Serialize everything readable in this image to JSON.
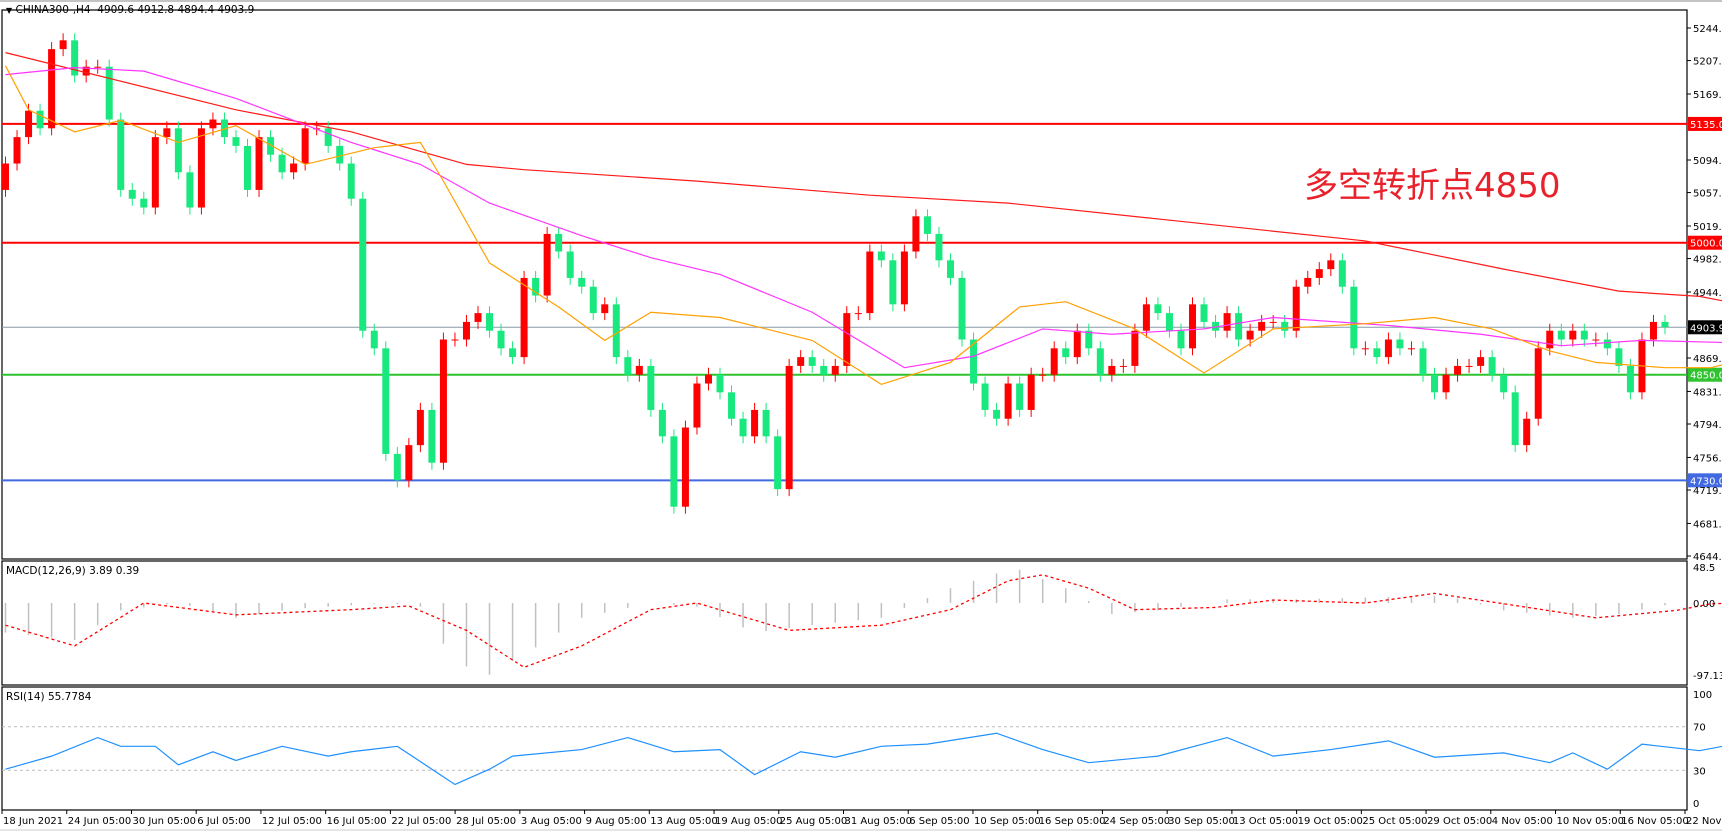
{
  "header": {
    "symbol": "CHINA300-,H4",
    "ohlc": "4909.6 4912.8 4894.4 4903.9"
  },
  "annotation": "多空转折点4850",
  "colors": {
    "bull": "#ff0000",
    "bear": "#19e87f",
    "ma_slow": "#ff1a1a",
    "ma_mid": "#ff33ff",
    "ma_fast": "#ffa000",
    "macd_hist": "#c0c0c0",
    "macd_signal": "#ff0000",
    "rsi": "#1e90ff"
  },
  "chart_data": [
    {
      "type": "candlestick",
      "title": "CHINA300-,H4",
      "ylim": [
        4644,
        5262
      ],
      "y_ticks": [
        "5244.0",
        "5207.0",
        "5169.0",
        "5094.0",
        "5057.0",
        "5019.0",
        "4982.0",
        "4944.0",
        "4869.0",
        "4831.0",
        "4794.0",
        "4756.0",
        "4719.0",
        "4681.0",
        "4644.0"
      ],
      "x_ticks": [
        "18 Jun 2021",
        "24 Jun 05:00",
        "30 Jun 05:00",
        "6 Jul 05:00",
        "12 Jul 05:00",
        "16 Jul 05:00",
        "22 Jul 05:00",
        "28 Jul 05:00",
        "3 Aug 05:00",
        "9 Aug 05:00",
        "13 Aug 05:00",
        "19 Aug 05:00",
        "25 Aug 05:00",
        "31 Aug 05:00",
        "6 Sep 05:00",
        "10 Sep 05:00",
        "16 Sep 05:00",
        "24 Sep 05:00",
        "30 Sep 05:00",
        "13 Oct 05:00",
        "19 Oct 05:00",
        "25 Oct 05:00",
        "29 Oct 05:00",
        "4 Nov 05:00",
        "10 Nov 05:00",
        "16 Nov 05:00",
        "22 Nov 05:00"
      ],
      "first_open": 5060,
      "closes": [
        5090,
        5120,
        5150,
        5130,
        5220,
        5230,
        5190,
        5200,
        5200,
        5140,
        5060,
        5050,
        5040,
        5120,
        5130,
        5080,
        5040,
        5130,
        5140,
        5120,
        5110,
        5060,
        5120,
        5100,
        5080,
        5090,
        5130,
        5130,
        5110,
        5090,
        5050,
        4900,
        4880,
        4760,
        4730,
        4770,
        4810,
        4750,
        4890,
        4890,
        4910,
        4920,
        4900,
        4880,
        4870,
        4960,
        4940,
        5010,
        4990,
        4960,
        4950,
        4920,
        4930,
        4870,
        4850,
        4860,
        4810,
        4780,
        4700,
        4790,
        4840,
        4850,
        4830,
        4800,
        4780,
        4810,
        4780,
        4720,
        4860,
        4870,
        4860,
        4850,
        4860,
        4920,
        4920,
        4990,
        4980,
        4930,
        4990,
        5030,
        5010,
        4980,
        4960,
        4890,
        4840,
        4810,
        4800,
        4840,
        4810,
        4850,
        4850,
        4880,
        4870,
        4900,
        4880,
        4850,
        4860,
        4860,
        4900,
        4930,
        4920,
        4900,
        4880,
        4930,
        4910,
        4900,
        4920,
        4890,
        4900,
        4910,
        4910,
        4900,
        4950,
        4960,
        4970,
        4980,
        4950,
        4880,
        4880,
        4870,
        4890,
        4880,
        4880,
        4850,
        4830,
        4850,
        4860,
        4860,
        4870,
        4850,
        4830,
        4770,
        4800,
        4880,
        4900,
        4890,
        4900,
        4890,
        4890,
        4880,
        4860,
        4830,
        4890,
        4910,
        4904
      ],
      "moving_averages": [
        {
          "role": "slow",
          "points": [
            [
              0,
              5216
            ],
            [
              20,
              5151
            ],
            [
              30,
              5126
            ],
            [
              40,
              5089
            ],
            [
              45,
              5083
            ],
            [
              60,
              5070
            ],
            [
              75,
              5054
            ],
            [
              87,
              5045
            ],
            [
              100,
              5027
            ],
            [
              118,
              5002
            ],
            [
              130,
              4970
            ],
            [
              140,
              4945
            ],
            [
              147,
              4939
            ],
            [
              151,
              4929
            ]
          ]
        },
        {
          "role": "mid",
          "points": [
            [
              0,
              5191
            ],
            [
              6,
              5199
            ],
            [
              12,
              5195
            ],
            [
              20,
              5164
            ],
            [
              30,
              5114
            ],
            [
              36,
              5089
            ],
            [
              42,
              5045
            ],
            [
              50,
              5008
            ],
            [
              56,
              4983
            ],
            [
              62,
              4964
            ],
            [
              70,
              4921
            ],
            [
              78,
              4858
            ],
            [
              84,
              4871
            ],
            [
              90,
              4902
            ],
            [
              96,
              4896
            ],
            [
              104,
              4902
            ],
            [
              110,
              4915
            ],
            [
              120,
              4906
            ],
            [
              128,
              4896
            ],
            [
              135,
              4883
            ],
            [
              142,
              4889
            ],
            [
              151,
              4886
            ]
          ]
        },
        {
          "role": "fast",
          "points": [
            [
              0,
              5201
            ],
            [
              2,
              5151
            ],
            [
              6,
              5126
            ],
            [
              10,
              5139
            ],
            [
              15,
              5114
            ],
            [
              20,
              5133
            ],
            [
              26,
              5089
            ],
            [
              32,
              5108
            ],
            [
              36,
              5114
            ],
            [
              38,
              5070
            ],
            [
              42,
              4977
            ],
            [
              48,
              4927
            ],
            [
              52,
              4889
            ],
            [
              56,
              4921
            ],
            [
              62,
              4915
            ],
            [
              70,
              4889
            ],
            [
              76,
              4839
            ],
            [
              82,
              4864
            ],
            [
              88,
              4927
            ],
            [
              92,
              4933
            ],
            [
              98,
              4902
            ],
            [
              104,
              4852
            ],
            [
              110,
              4902
            ],
            [
              118,
              4908
            ],
            [
              124,
              4915
            ],
            [
              129,
              4902
            ],
            [
              134,
              4877
            ],
            [
              138,
              4864
            ],
            [
              144,
              4858
            ],
            [
              148,
              4858
            ],
            [
              151,
              4868
            ]
          ]
        }
      ],
      "levels": [
        {
          "value": 5135.0,
          "label": "5135.0",
          "color": "#ff0000"
        },
        {
          "value": 5000.0,
          "label": "5000.0",
          "color": "#ff0000"
        },
        {
          "value": 4903.9,
          "label": "4903.9",
          "color": "#8a9aa8"
        },
        {
          "value": 4850.0,
          "label": "4850.0",
          "color": "#2fc42f"
        },
        {
          "value": 4730.0,
          "label": "4730.0",
          "color": "#4169e1"
        }
      ]
    },
    {
      "type": "bar+line",
      "title": "MACD(12,26,9) 3.89 0.39",
      "ylim": [
        -97.13,
        48.5
      ],
      "y_ticks": [
        "48.5",
        "0.00",
        "-97.13"
      ],
      "histogram": [
        [
          0,
          -40
        ],
        [
          6,
          -50
        ],
        [
          10,
          -10
        ],
        [
          15,
          0
        ],
        [
          20,
          -20
        ],
        [
          25,
          -8
        ],
        [
          33,
          0
        ],
        [
          36,
          -5
        ],
        [
          39,
          -80
        ],
        [
          42,
          -97
        ],
        [
          46,
          -60
        ],
        [
          50,
          -20
        ],
        [
          56,
          0
        ],
        [
          60,
          -5
        ],
        [
          65,
          -40
        ],
        [
          70,
          -30
        ],
        [
          76,
          -20
        ],
        [
          82,
          20
        ],
        [
          86,
          40
        ],
        [
          88,
          45
        ],
        [
          92,
          20
        ],
        [
          96,
          -15
        ],
        [
          100,
          -10
        ],
        [
          106,
          5
        ],
        [
          112,
          5
        ],
        [
          120,
          8
        ],
        [
          125,
          10
        ],
        [
          130,
          -10
        ],
        [
          136,
          -20
        ],
        [
          140,
          -15
        ],
        [
          144,
          -3
        ],
        [
          151,
          3
        ]
      ],
      "signal": [
        [
          0,
          -30
        ],
        [
          6,
          -58
        ],
        [
          12,
          0
        ],
        [
          20,
          -16
        ],
        [
          30,
          -9
        ],
        [
          35,
          -4
        ],
        [
          40,
          -37
        ],
        [
          45,
          -87
        ],
        [
          50,
          -58
        ],
        [
          56,
          -9
        ],
        [
          60,
          0
        ],
        [
          68,
          -37
        ],
        [
          76,
          -30
        ],
        [
          82,
          -9
        ],
        [
          87,
          30
        ],
        [
          90,
          38
        ],
        [
          94,
          20
        ],
        [
          98,
          -9
        ],
        [
          105,
          -6
        ],
        [
          110,
          4
        ],
        [
          118,
          0
        ],
        [
          124,
          13
        ],
        [
          130,
          -1
        ],
        [
          138,
          -20
        ],
        [
          145,
          -10
        ],
        [
          148,
          -1
        ],
        [
          151,
          0
        ]
      ]
    },
    {
      "type": "line",
      "title": "RSI(14) 55.7784",
      "ylim": [
        0,
        100
      ],
      "y_ticks": [
        "100",
        "70",
        "30",
        "0"
      ],
      "levels": [
        70,
        30
      ],
      "values": [
        [
          0,
          31
        ],
        [
          4,
          43
        ],
        [
          8,
          60
        ],
        [
          10,
          52
        ],
        [
          13,
          52
        ],
        [
          15,
          35
        ],
        [
          18,
          47
        ],
        [
          20,
          39
        ],
        [
          24,
          52
        ],
        [
          28,
          43
        ],
        [
          30,
          47
        ],
        [
          34,
          52
        ],
        [
          37,
          31
        ],
        [
          39,
          17
        ],
        [
          42,
          31
        ],
        [
          44,
          43
        ],
        [
          50,
          49
        ],
        [
          54,
          60
        ],
        [
          58,
          47
        ],
        [
          62,
          49
        ],
        [
          65,
          26
        ],
        [
          69,
          47
        ],
        [
          72,
          42
        ],
        [
          76,
          52
        ],
        [
          80,
          54
        ],
        [
          86,
          64
        ],
        [
          90,
          49
        ],
        [
          94,
          37
        ],
        [
          100,
          43
        ],
        [
          106,
          60
        ],
        [
          110,
          43
        ],
        [
          115,
          49
        ],
        [
          120,
          57
        ],
        [
          124,
          42
        ],
        [
          130,
          46
        ],
        [
          134,
          37
        ],
        [
          136,
          46
        ],
        [
          139,
          31
        ],
        [
          142,
          54
        ],
        [
          147,
          48
        ],
        [
          150,
          54
        ],
        [
          151,
          53
        ]
      ]
    }
  ]
}
